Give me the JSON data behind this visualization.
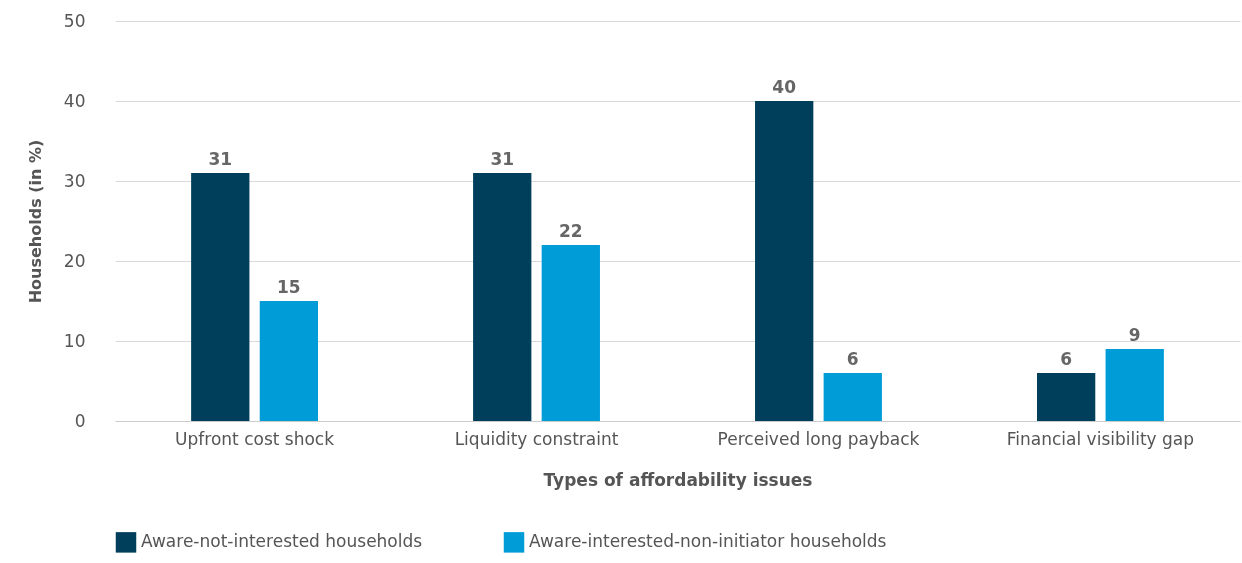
{
  "chart_data": {
    "type": "bar",
    "xlabel": "Types of affordability issues",
    "ylabel": "Households (in %)",
    "categories": [
      "Upfront cost shock",
      "Liquidity constraint",
      "Perceived long payback",
      "Financial visibility gap"
    ],
    "series": [
      {
        "name": "Aware-not-interested households",
        "color": "#003f5c",
        "values": [
          31,
          31,
          40,
          6
        ]
      },
      {
        "name": "Aware-interested-non-initiator households",
        "color": "#009cd8",
        "values": [
          15,
          22,
          6,
          9
        ]
      }
    ],
    "ylim": [
      0,
      50
    ],
    "yticks": [
      0,
      10,
      20,
      30,
      40,
      50
    ],
    "grid": "y",
    "legend": "bottom left",
    "data_labels": true
  }
}
